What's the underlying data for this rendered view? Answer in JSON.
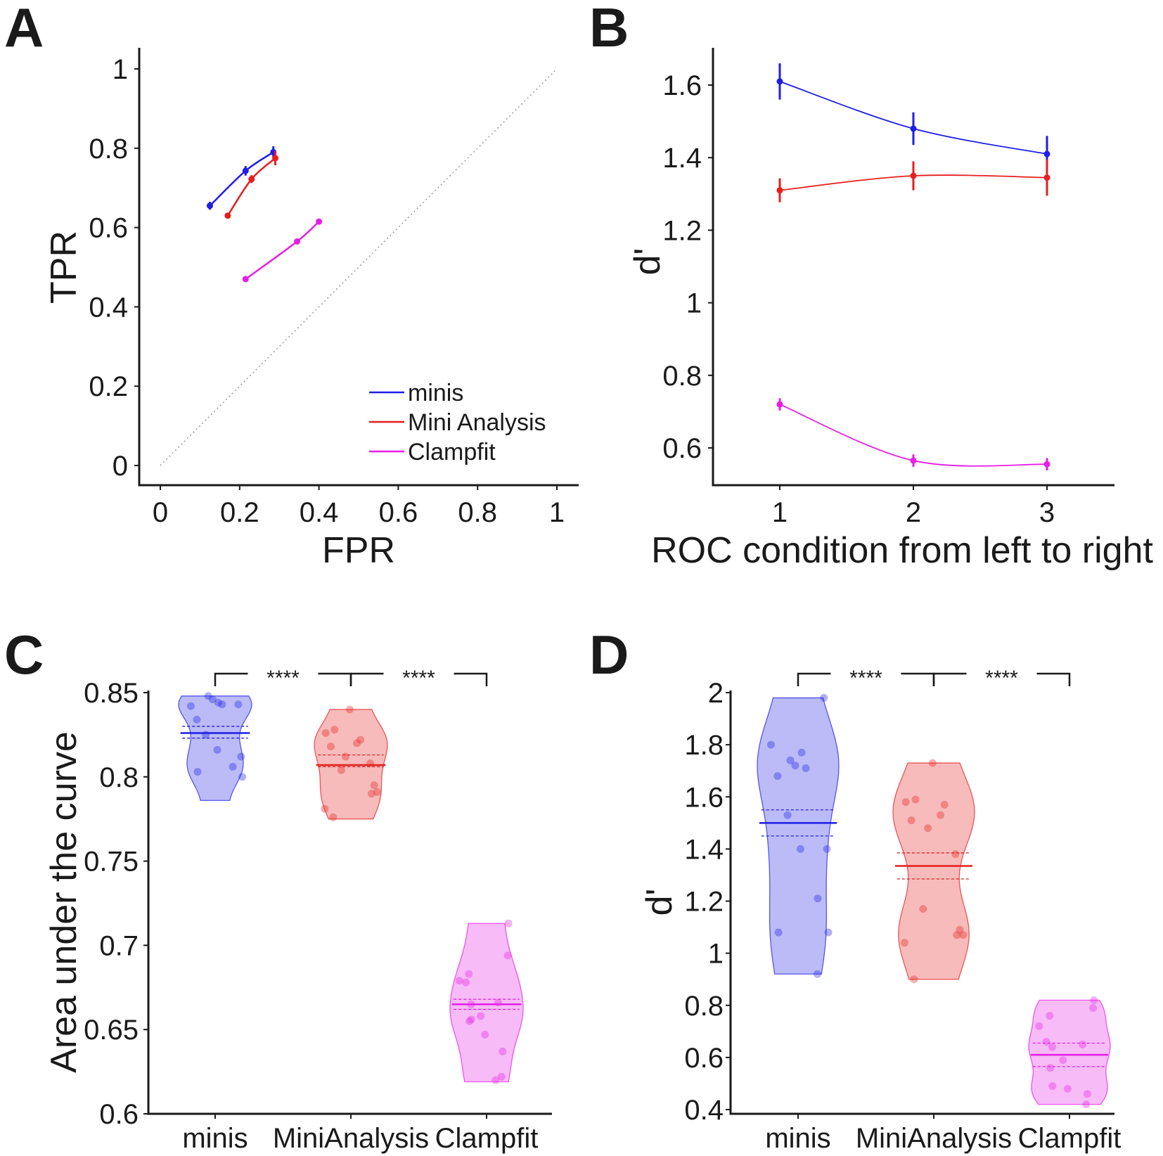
{
  "colors": {
    "minis": "#1e1ee6",
    "mini_analysis": "#e61e1e",
    "clampfit": "#e61ee6"
  },
  "chart_data": [
    {
      "panel": "A",
      "type": "line",
      "xlabel": "FPR",
      "ylabel": "TPR",
      "xlim": [
        0,
        1
      ],
      "ylim": [
        0,
        1
      ],
      "xticks": [
        "0",
        "0.2",
        "0.4",
        "0.6",
        "0.8",
        "1"
      ],
      "yticks": [
        "0",
        "0.2",
        "0.4",
        "0.6",
        "0.8",
        "1"
      ],
      "chance_line": true,
      "legend": [
        "minis",
        "Mini Analysis",
        "Clampfit"
      ],
      "series": [
        {
          "name": "minis",
          "color_key": "minis",
          "x": [
            0.125,
            0.215,
            0.285
          ],
          "y": [
            0.655,
            0.743,
            0.79
          ],
          "yerr": [
            0.01,
            0.012,
            0.015
          ]
        },
        {
          "name": "Mini Analysis",
          "color_key": "mini_analysis",
          "x": [
            0.17,
            0.23,
            0.29
          ],
          "y": [
            0.63,
            0.722,
            0.775
          ],
          "yerr": [
            0.006,
            0.01,
            0.018
          ]
        },
        {
          "name": "Clampfit",
          "color_key": "clampfit",
          "x": [
            0.215,
            0.345,
            0.4
          ],
          "y": [
            0.47,
            0.565,
            0.615
          ],
          "yerr": [
            0.004,
            0.005,
            0.006
          ]
        }
      ]
    },
    {
      "panel": "B",
      "type": "line",
      "xlabel": "ROC condition from left to right",
      "ylabel": "d'",
      "xlim": [
        0.4,
        3.5
      ],
      "ylim": [
        0.5,
        1.7
      ],
      "x": [
        1,
        2,
        3
      ],
      "xticks": [
        "1",
        "2",
        "3"
      ],
      "yticks": [
        "0.6",
        "0.8",
        "1",
        "1.2",
        "1.4",
        "1.6"
      ],
      "series": [
        {
          "name": "minis",
          "color_key": "minis",
          "values": [
            1.61,
            1.48,
            1.41
          ],
          "yerr": [
            0.05,
            0.045,
            0.05
          ]
        },
        {
          "name": "Mini Analysis",
          "color_key": "mini_analysis",
          "values": [
            1.31,
            1.35,
            1.345
          ],
          "yerr": [
            0.033,
            0.04,
            0.05
          ]
        },
        {
          "name": "Clampfit",
          "color_key": "clampfit",
          "values": [
            0.72,
            0.565,
            0.555
          ],
          "yerr": [
            0.017,
            0.017,
            0.017
          ]
        }
      ]
    },
    {
      "panel": "C",
      "type": "violin",
      "xlabel": "",
      "ylabel": "Area under the curve",
      "ylim": [
        0.6,
        0.85
      ],
      "yticks": [
        "0.6",
        "0.65",
        "0.7",
        "0.75",
        "0.8",
        "0.85"
      ],
      "categories": [
        "minis",
        "MiniAnalysis",
        "Clampfit"
      ],
      "significance": [
        {
          "from": "minis",
          "to": "MiniAnalysis",
          "label": "****"
        },
        {
          "from": "MiniAnalysis",
          "to": "Clampfit",
          "label": "****"
        }
      ],
      "groups": [
        {
          "name": "minis",
          "color_key": "minis",
          "mean": 0.826,
          "ci": [
            0.823,
            0.83
          ],
          "min": 0.786,
          "max": 0.848,
          "points": [
            0.843,
            0.842,
            0.844,
            0.848,
            0.846,
            0.843,
            0.834,
            0.825,
            0.816,
            0.812,
            0.806,
            0.803,
            0.8
          ]
        },
        {
          "name": "MiniAnalysis",
          "color_key": "mini_analysis",
          "mean": 0.807,
          "ci": [
            0.806,
            0.813
          ],
          "min": 0.775,
          "max": 0.84,
          "points": [
            0.84,
            0.828,
            0.826,
            0.822,
            0.82,
            0.818,
            0.812,
            0.808,
            0.804,
            0.795,
            0.791,
            0.79,
            0.781,
            0.776
          ]
        },
        {
          "name": "Clampfit",
          "color_key": "clampfit",
          "mean": 0.665,
          "ci": [
            0.662,
            0.668
          ],
          "min": 0.619,
          "max": 0.713,
          "points": [
            0.713,
            0.694,
            0.683,
            0.679,
            0.678,
            0.666,
            0.665,
            0.658,
            0.655,
            0.656,
            0.647,
            0.637,
            0.622,
            0.62
          ]
        }
      ]
    },
    {
      "panel": "D",
      "type": "violin",
      "xlabel": "",
      "ylabel": "d'",
      "ylim": [
        0.4,
        2.0
      ],
      "yticks": [
        "0.4",
        "0.6",
        "0.8",
        "1",
        "1.2",
        "1.4",
        "1.6",
        "1.8",
        "2"
      ],
      "categories": [
        "minis",
        "MiniAnalysis",
        "Clampfit"
      ],
      "significance": [
        {
          "from": "minis",
          "to": "MiniAnalysis",
          "label": "****"
        },
        {
          "from": "MiniAnalysis",
          "to": "Clampfit",
          "label": "****"
        }
      ],
      "groups": [
        {
          "name": "minis",
          "color_key": "minis",
          "mean": 1.5,
          "ci": [
            1.45,
            1.55
          ],
          "min": 0.92,
          "max": 1.98,
          "points": [
            1.98,
            1.8,
            1.77,
            1.74,
            1.72,
            1.71,
            1.68,
            1.53,
            1.4,
            1.4,
            1.21,
            1.08,
            1.08,
            0.92
          ]
        },
        {
          "name": "MiniAnalysis",
          "color_key": "mini_analysis",
          "mean": 1.335,
          "ci": [
            1.285,
            1.385
          ],
          "min": 0.9,
          "max": 1.73,
          "points": [
            1.73,
            1.59,
            1.58,
            1.57,
            1.53,
            1.51,
            1.48,
            1.38,
            1.17,
            1.09,
            1.07,
            1.07,
            1.04,
            0.9
          ]
        },
        {
          "name": "Clampfit",
          "color_key": "clampfit",
          "mean": 0.61,
          "ci": [
            0.565,
            0.655
          ],
          "min": 0.42,
          "max": 0.82,
          "points": [
            0.82,
            0.79,
            0.76,
            0.72,
            0.66,
            0.65,
            0.64,
            0.59,
            0.56,
            0.49,
            0.48,
            0.46,
            0.42
          ]
        }
      ]
    }
  ]
}
